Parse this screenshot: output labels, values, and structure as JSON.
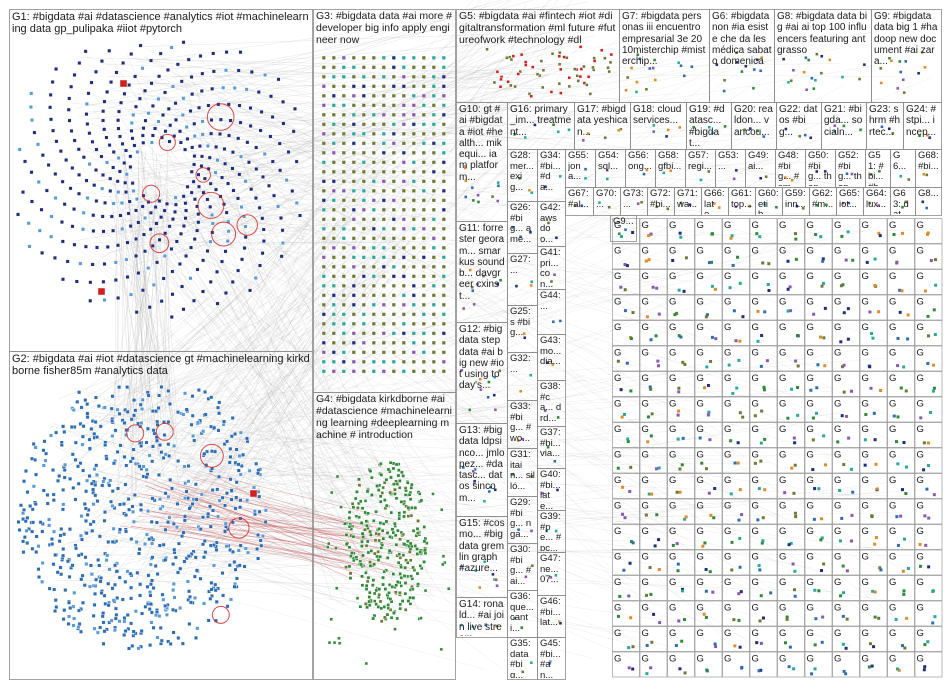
{
  "colors": {
    "border": "#8c8c8c",
    "edge": "#9a9a9a",
    "edge_red": "#b83a3a",
    "node_dark_blue": "#1f2e7a",
    "node_blue": "#2e6db4",
    "node_light_blue": "#5b9bd5",
    "node_green": "#2f8a3a",
    "node_olive": "#6d7a35",
    "node_red": "#d22020",
    "node_purple": "#8a58b0",
    "node_orange": "#e08a2a",
    "node_teal": "#2aa89a"
  },
  "groups": [
    {
      "id": "G1",
      "label": "G1: #bigdata #ai #datascience #analytics #iot #machinelearning data gp_pulipaka #iiot #pytorch"
    },
    {
      "id": "G2",
      "label": "G2: #bigdata #ai #iot #datascience gt #machinelearning kirkdborne fisher85m #analytics data"
    },
    {
      "id": "G3",
      "label": "G3: #bigdata data #ai more #developer big info apply engineer now"
    },
    {
      "id": "G4",
      "label": "G4: #bigdata kirkdborne #ai #datascience #machinelearning learning #deeplearning machine # introduction"
    },
    {
      "id": "G5",
      "label": "G5: #bigdata #ai #fintech #iot #digitaltransformation #ml future #futureofwork #technology #dl"
    },
    {
      "id": "G6",
      "label": "G6: #bigdata non #ia esiste che da les médica sabato domenica"
    },
    {
      "id": "G7",
      "label": "G7: #bigdata personas iii encuentro empresarial 3e 2010misterchip #misterchip..."
    },
    {
      "id": "G8",
      "label": "G8: #bigdata data big #ai ai top 100 influencers featuring antgrasso"
    },
    {
      "id": "G9",
      "label": "G9: #bigdata data big 1 #hadoop new document #ai zara..."
    },
    {
      "id": "G10",
      "label": "G10: gt #ai #bigdata #iot #health... mikequi... iam platform..."
    },
    {
      "id": "G11",
      "label": "G11: forrester georam... smarkus soundb... davgreer cxinst..."
    },
    {
      "id": "G12",
      "label": "G12: #bigdata step data #ai big new #iot using today's..."
    },
    {
      "id": "G13",
      "label": "G13: #bigdata ldpsinco... jmlopez... #datasc... datos sincom..."
    },
    {
      "id": "G14",
      "label": "G14: ronald... #ai join live stream..."
    },
    {
      "id": "G15",
      "label": "G15: #cosmo... #bigdata gremlin graph #azure..."
    },
    {
      "id": "G16",
      "label": "G16: primary_im... treatment..."
    },
    {
      "id": "G17",
      "label": "G17: #bigdata yeshican..."
    },
    {
      "id": "G18",
      "label": "G18: cloud services..."
    },
    {
      "id": "G19",
      "label": "G19: #datasc... #bigdat..."
    },
    {
      "id": "G20",
      "label": "G20: realdon... vancou..."
    },
    {
      "id": "G21",
      "label": "G21: #bigda... socialn..."
    },
    {
      "id": "G22",
      "label": "G22: datos #big..."
    },
    {
      "id": "G23",
      "label": "G23: shrm #hrtec..."
    },
    {
      "id": "G24",
      "label": "G24: #stpi... incep..."
    },
    {
      "id": "G25",
      "label": "G25: s #big..."
    },
    {
      "id": "G26",
      "label": "G26: #big... ame..."
    },
    {
      "id": "G27",
      "label": "G27: ..."
    },
    {
      "id": "G28",
      "label": "G28: mer... exig..."
    },
    {
      "id": "G29",
      "label": "G29: #big... nga..."
    },
    {
      "id": "G30",
      "label": "G30: #big... #ai..."
    },
    {
      "id": "G31",
      "label": "G31: itain... silló..."
    },
    {
      "id": "G32",
      "label": "G32: ..."
    },
    {
      "id": "G33",
      "label": "G33: #big... #wo..."
    },
    {
      "id": "G34",
      "label": "G34: #bi... #da..."
    },
    {
      "id": "G35",
      "label": "G35: data #big..."
    },
    {
      "id": "G36",
      "label": "G36: que... canti..."
    },
    {
      "id": "G37",
      "label": "G37: #bi... via..."
    },
    {
      "id": "G38",
      "label": "G38: #ca... drd..."
    },
    {
      "id": "G39",
      "label": "G39: #pe... #pc..."
    },
    {
      "id": "G40",
      "label": "G40: #bi... late..."
    },
    {
      "id": "G41",
      "label": "G41: pri... con..."
    },
    {
      "id": "G42",
      "label": "G42: aws doo..."
    },
    {
      "id": "G43",
      "label": "G43: mo... dia..."
    },
    {
      "id": "G44",
      "label": "G44: ..."
    },
    {
      "id": "G45",
      "label": "G45: #bi... #an..."
    },
    {
      "id": "G46",
      "label": "G46: #bi... lat..."
    },
    {
      "id": "G47",
      "label": "G47: ne... 07..."
    },
    {
      "id": "G48",
      "label": "G48: #big... #sm..."
    },
    {
      "id": "G49",
      "label": "G49: ai..."
    },
    {
      "id": "G50",
      "label": "G50: #big... then..."
    },
    {
      "id": "G51",
      "label": "G51: #bi... #hr..."
    },
    {
      "id": "G52",
      "label": "G52: #big... then..."
    },
    {
      "id": "G53",
      "label": "G53: ..."
    },
    {
      "id": "G54",
      "label": "G54: sql..."
    },
    {
      "id": "G55",
      "label": "G55: jona..."
    },
    {
      "id": "G56",
      "label": "G56: ong..."
    },
    {
      "id": "G57",
      "label": "G57: regi..."
    },
    {
      "id": "G58",
      "label": "G58: gfbi..."
    },
    {
      "id": "G59",
      "label": "G59: inn..."
    },
    {
      "id": "G60",
      "label": "G60: etib..."
    },
    {
      "id": "G61",
      "label": "G61: top..."
    },
    {
      "id": "G62",
      "label": "G62: #m..."
    },
    {
      "id": "G63",
      "label": "G63: dat..."
    },
    {
      "id": "G64",
      "label": "G64: lux..."
    },
    {
      "id": "G65",
      "label": "G65: iot..."
    },
    {
      "id": "G66",
      "label": "G66: late..."
    },
    {
      "id": "G67",
      "label": "G67: #al..."
    },
    {
      "id": "G68",
      "label": "G68: #bi..."
    },
    {
      "id": "G69",
      "label": "G69: ..."
    },
    {
      "id": "G70",
      "label": "G70: ..."
    },
    {
      "id": "G71",
      "label": "G71: wa..."
    },
    {
      "id": "G72",
      "label": "G72: #bi..."
    },
    {
      "id": "G73",
      "label": "G73: ..."
    },
    {
      "id": "G8x",
      "label": "G8..."
    },
    {
      "id": "G9x",
      "label": "G9..."
    },
    {
      "id": "G6x",
      "label": "G6..."
    },
    {
      "id": "Gx",
      "label": "G..."
    }
  ],
  "node_glyph": "G"
}
